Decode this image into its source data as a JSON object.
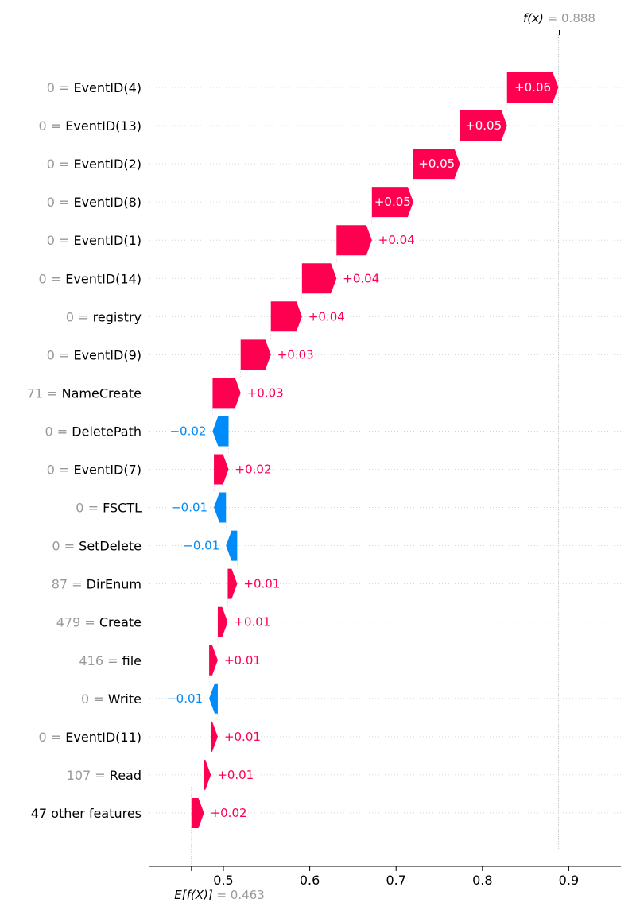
{
  "chart_data": {
    "type": "waterfall",
    "fx": {
      "label": "f(x)",
      "value": 0.888,
      "value_text": "0.888"
    },
    "base": {
      "label": "E[f(X)]",
      "value": 0.463,
      "value_text": "0.463"
    },
    "xlim": [
      0.435,
      0.958
    ],
    "ticks": [
      {
        "value": 0.5,
        "label": "0.5"
      },
      {
        "value": 0.6,
        "label": "0.6"
      },
      {
        "value": 0.7,
        "label": "0.7"
      },
      {
        "value": 0.8,
        "label": "0.8"
      },
      {
        "value": 0.9,
        "label": "0.9"
      }
    ],
    "colors": {
      "positive": "#ff0051",
      "negative": "#008bfb",
      "feature_value": "#999999",
      "grid": "#cccccc"
    },
    "features": [
      {
        "value": "0",
        "name": "EventID(4)",
        "start": 0.8285,
        "end": 0.888,
        "label": "+0.06"
      },
      {
        "value": "0",
        "name": "EventID(13)",
        "start": 0.774,
        "end": 0.8285,
        "label": "+0.05"
      },
      {
        "value": "0",
        "name": "EventID(2)",
        "start": 0.72,
        "end": 0.774,
        "label": "+0.05"
      },
      {
        "value": "0",
        "name": "EventID(8)",
        "start": 0.672,
        "end": 0.72,
        "label": "+0.05"
      },
      {
        "value": "0",
        "name": "EventID(1)",
        "start": 0.631,
        "end": 0.672,
        "label": "+0.04"
      },
      {
        "value": "0",
        "name": "EventID(14)",
        "start": 0.591,
        "end": 0.631,
        "label": "+0.04"
      },
      {
        "value": "0",
        "name": "registry",
        "start": 0.555,
        "end": 0.591,
        "label": "+0.04"
      },
      {
        "value": "0",
        "name": "EventID(9)",
        "start": 0.52,
        "end": 0.555,
        "label": "+0.03"
      },
      {
        "value": "71",
        "name": "NameCreate",
        "start": 0.4875,
        "end": 0.52,
        "label": "+0.03"
      },
      {
        "value": "0",
        "name": "DeletePath",
        "start": 0.506,
        "end": 0.4875,
        "label": "−0.02"
      },
      {
        "value": "0",
        "name": "EventID(7)",
        "start": 0.489,
        "end": 0.506,
        "label": "+0.02"
      },
      {
        "value": "0",
        "name": "FSCTL",
        "start": 0.503,
        "end": 0.489,
        "label": "−0.01"
      },
      {
        "value": "0",
        "name": "SetDelete",
        "start": 0.516,
        "end": 0.503,
        "label": "−0.01"
      },
      {
        "value": "87",
        "name": "DirEnum",
        "start": 0.505,
        "end": 0.516,
        "label": "+0.01"
      },
      {
        "value": "479",
        "name": "Create",
        "start": 0.4935,
        "end": 0.505,
        "label": "+0.01"
      },
      {
        "value": "416",
        "name": "file",
        "start": 0.4835,
        "end": 0.4935,
        "label": "+0.01"
      },
      {
        "value": "0",
        "name": "Write",
        "start": 0.4935,
        "end": 0.4835,
        "label": "−0.01"
      },
      {
        "value": "0",
        "name": "EventID(11)",
        "start": 0.4855,
        "end": 0.4935,
        "label": "+0.01"
      },
      {
        "value": "107",
        "name": "Read",
        "start": 0.4775,
        "end": 0.4855,
        "label": "+0.01"
      },
      {
        "value": "",
        "name": "47 other features",
        "start": 0.463,
        "end": 0.4775,
        "label": "+0.02"
      }
    ]
  }
}
